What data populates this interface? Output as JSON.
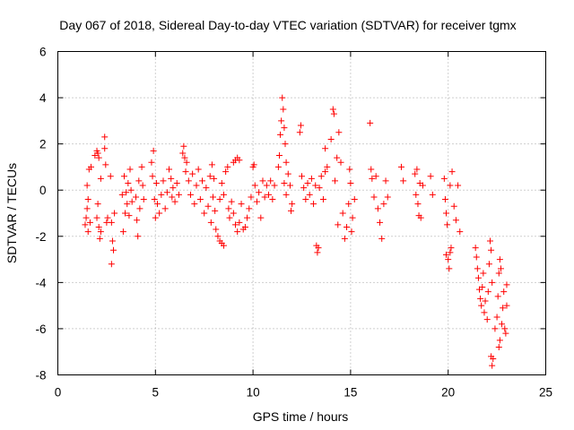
{
  "chart_data": {
    "type": "scatter",
    "title": "Day 067 of 2018, Sidereal Day-to-day VTEC variation (SDTVAR) for receiver tgmx",
    "xlabel": "GPS time / hours",
    "ylabel": "SDTVAR / TECUs",
    "xlim": [
      0,
      25
    ],
    "ylim": [
      -8,
      6
    ],
    "xticks": [
      0,
      5,
      10,
      15,
      20,
      25
    ],
    "yticks": [
      -8,
      -6,
      -4,
      -2,
      0,
      2,
      4,
      6
    ],
    "xtick_labels": [
      "0",
      "5",
      "10",
      "15",
      "20",
      "25"
    ],
    "ytick_labels": [
      "-8",
      "-6",
      "-4",
      "-2",
      "0",
      "2",
      "4",
      "6"
    ],
    "grid": true,
    "marker": "+",
    "color": "#ff0000",
    "series": [
      {
        "name": "SDTVAR",
        "points": [
          [
            1.4,
            -1.5
          ],
          [
            1.45,
            -1.2
          ],
          [
            1.5,
            -0.8
          ],
          [
            1.55,
            -0.4
          ],
          [
            1.5,
            0.2
          ],
          [
            1.6,
            0.9
          ],
          [
            1.7,
            1.0
          ],
          [
            1.55,
            -1.8
          ],
          [
            1.65,
            -1.4
          ],
          [
            1.9,
            1.5
          ],
          [
            2.0,
            1.7
          ],
          [
            2.05,
            1.6
          ],
          [
            2.1,
            1.4
          ],
          [
            2.0,
            -1.2
          ],
          [
            2.1,
            -1.6
          ],
          [
            2.15,
            -2.1
          ],
          [
            2.2,
            -1.8
          ],
          [
            2.05,
            -0.6
          ],
          [
            2.2,
            0.5
          ],
          [
            2.4,
            2.3
          ],
          [
            2.4,
            1.8
          ],
          [
            2.45,
            1.1
          ],
          [
            2.5,
            -1.4
          ],
          [
            2.55,
            -1.2
          ],
          [
            2.7,
            0.6
          ],
          [
            2.75,
            -1.4
          ],
          [
            2.8,
            -2.2
          ],
          [
            2.75,
            -3.2
          ],
          [
            2.85,
            -2.6
          ],
          [
            2.9,
            -1.0
          ],
          [
            3.3,
            -0.2
          ],
          [
            3.35,
            -1.8
          ],
          [
            3.4,
            0.6
          ],
          [
            3.45,
            -1.0
          ],
          [
            3.5,
            -0.1
          ],
          [
            3.55,
            -0.6
          ],
          [
            3.6,
            0.3
          ],
          [
            3.65,
            -1.1
          ],
          [
            3.7,
            0.9
          ],
          [
            3.75,
            0.0
          ],
          [
            3.8,
            -0.5
          ],
          [
            4.0,
            -0.3
          ],
          [
            4.05,
            -1.3
          ],
          [
            4.1,
            -2.0
          ],
          [
            4.15,
            0.4
          ],
          [
            4.2,
            -0.8
          ],
          [
            4.3,
            1.0
          ],
          [
            4.35,
            0.2
          ],
          [
            4.4,
            -0.4
          ],
          [
            4.8,
            1.2
          ],
          [
            4.85,
            0.6
          ],
          [
            4.9,
            1.7
          ],
          [
            4.95,
            -0.4
          ],
          [
            5.0,
            -1.2
          ],
          [
            5.05,
            0.3
          ],
          [
            5.1,
            -0.6
          ],
          [
            5.2,
            -1.0
          ],
          [
            5.3,
            -0.2
          ],
          [
            5.4,
            0.4
          ],
          [
            5.5,
            -0.8
          ],
          [
            5.6,
            -0.1
          ],
          [
            5.7,
            0.9
          ],
          [
            5.8,
            0.5
          ],
          [
            5.85,
            -0.3
          ],
          [
            5.9,
            0.1
          ],
          [
            6.0,
            -0.5
          ],
          [
            6.1,
            0.3
          ],
          [
            6.2,
            -0.2
          ],
          [
            6.4,
            1.6
          ],
          [
            6.45,
            1.9
          ],
          [
            6.5,
            1.4
          ],
          [
            6.55,
            0.8
          ],
          [
            6.6,
            1.2
          ],
          [
            6.7,
            0.4
          ],
          [
            6.8,
            -0.2
          ],
          [
            6.9,
            0.7
          ],
          [
            7.0,
            -0.6
          ],
          [
            7.1,
            0.2
          ],
          [
            7.2,
            0.9
          ],
          [
            7.3,
            -0.4
          ],
          [
            7.4,
            0.4
          ],
          [
            7.5,
            -1.0
          ],
          [
            7.6,
            0.1
          ],
          [
            7.7,
            -0.7
          ],
          [
            7.8,
            0.6
          ],
          [
            7.9,
            1.1
          ],
          [
            7.85,
            -1.4
          ],
          [
            7.95,
            -0.3
          ],
          [
            8.0,
            0.5
          ],
          [
            8.05,
            -0.9
          ],
          [
            8.1,
            -1.7
          ],
          [
            8.2,
            -2.0
          ],
          [
            8.3,
            -2.2
          ],
          [
            8.4,
            -2.3
          ],
          [
            8.5,
            -2.4
          ],
          [
            8.3,
            -0.4
          ],
          [
            8.4,
            0.3
          ],
          [
            8.5,
            -0.2
          ],
          [
            8.6,
            0.8
          ],
          [
            8.7,
            1.0
          ],
          [
            8.75,
            -0.8
          ],
          [
            8.8,
            -1.2
          ],
          [
            8.9,
            -0.5
          ],
          [
            9.0,
            1.2
          ],
          [
            9.1,
            1.3
          ],
          [
            9.2,
            1.4
          ],
          [
            9.3,
            1.3
          ],
          [
            9.0,
            -1.0
          ],
          [
            9.1,
            -1.5
          ],
          [
            9.2,
            -1.8
          ],
          [
            9.3,
            -1.4
          ],
          [
            9.4,
            -0.6
          ],
          [
            9.5,
            -1.7
          ],
          [
            9.6,
            -1.6
          ],
          [
            9.7,
            -1.2
          ],
          [
            9.8,
            -0.8
          ],
          [
            9.9,
            -0.3
          ],
          [
            10.0,
            1.0
          ],
          [
            10.05,
            1.1
          ],
          [
            10.1,
            0.2
          ],
          [
            10.2,
            -0.5
          ],
          [
            10.3,
            -0.1
          ],
          [
            10.4,
            -1.2
          ],
          [
            10.5,
            0.4
          ],
          [
            10.6,
            -0.3
          ],
          [
            10.7,
            0.2
          ],
          [
            10.8,
            -0.2
          ],
          [
            10.9,
            0.4
          ],
          [
            11.0,
            -0.4
          ],
          [
            11.1,
            0.2
          ],
          [
            11.3,
            1.0
          ],
          [
            11.35,
            1.5
          ],
          [
            11.4,
            2.4
          ],
          [
            11.45,
            3.0
          ],
          [
            11.5,
            4.0
          ],
          [
            11.55,
            3.5
          ],
          [
            11.6,
            2.7
          ],
          [
            11.65,
            2.0
          ],
          [
            11.7,
            1.2
          ],
          [
            11.6,
            0.3
          ],
          [
            11.7,
            -0.2
          ],
          [
            11.8,
            0.7
          ],
          [
            11.9,
            0.2
          ],
          [
            12.0,
            -0.6
          ],
          [
            11.95,
            -0.9
          ],
          [
            12.4,
            2.5
          ],
          [
            12.45,
            2.8
          ],
          [
            12.5,
            0.6
          ],
          [
            12.6,
            0.1
          ],
          [
            12.7,
            -0.4
          ],
          [
            12.8,
            0.3
          ],
          [
            12.9,
            -0.2
          ],
          [
            13.0,
            0.5
          ],
          [
            13.1,
            -0.6
          ],
          [
            13.2,
            0.2
          ],
          [
            13.25,
            -2.4
          ],
          [
            13.3,
            -2.7
          ],
          [
            13.35,
            -2.5
          ],
          [
            13.4,
            0.1
          ],
          [
            13.5,
            0.6
          ],
          [
            13.6,
            -0.4
          ],
          [
            13.7,
            0.8
          ],
          [
            13.8,
            1.0
          ],
          [
            13.7,
            1.8
          ],
          [
            14.0,
            2.2
          ],
          [
            14.1,
            3.5
          ],
          [
            14.15,
            3.3
          ],
          [
            14.2,
            0.4
          ],
          [
            14.3,
            1.4
          ],
          [
            14.35,
            -1.5
          ],
          [
            14.4,
            2.5
          ],
          [
            14.5,
            1.2
          ],
          [
            14.6,
            -1.0
          ],
          [
            14.7,
            -2.1
          ],
          [
            14.8,
            -1.6
          ],
          [
            14.9,
            -0.6
          ],
          [
            15.0,
            0.3
          ],
          [
            15.05,
            -1.8
          ],
          [
            15.1,
            -1.2
          ],
          [
            14.95,
            0.9
          ],
          [
            15.2,
            -0.4
          ],
          [
            16.0,
            2.9
          ],
          [
            16.05,
            0.9
          ],
          [
            16.1,
            0.5
          ],
          [
            16.2,
            -0.3
          ],
          [
            16.3,
            0.6
          ],
          [
            16.4,
            -0.8
          ],
          [
            16.5,
            -1.4
          ],
          [
            16.6,
            -2.1
          ],
          [
            16.7,
            -0.6
          ],
          [
            16.8,
            0.4
          ],
          [
            16.9,
            -0.3
          ],
          [
            17.6,
            1.0
          ],
          [
            17.7,
            0.4
          ],
          [
            18.3,
            0.7
          ],
          [
            18.35,
            -0.2
          ],
          [
            18.4,
            0.9
          ],
          [
            18.45,
            -0.6
          ],
          [
            18.5,
            -1.1
          ],
          [
            18.55,
            0.3
          ],
          [
            18.6,
            -1.2
          ],
          [
            18.7,
            0.2
          ],
          [
            19.1,
            0.6
          ],
          [
            19.2,
            -0.2
          ],
          [
            19.8,
            0.5
          ],
          [
            19.85,
            -0.4
          ],
          [
            19.9,
            -1.0
          ],
          [
            19.95,
            -1.5
          ],
          [
            19.9,
            -2.8
          ],
          [
            20.0,
            -3.0
          ],
          [
            20.05,
            -3.4
          ],
          [
            20.1,
            -2.7
          ],
          [
            20.15,
            -2.5
          ],
          [
            20.2,
            0.8
          ],
          [
            20.1,
            0.2
          ],
          [
            20.3,
            -0.7
          ],
          [
            20.4,
            -1.3
          ],
          [
            20.5,
            0.2
          ],
          [
            20.6,
            -1.8
          ],
          [
            21.4,
            -2.5
          ],
          [
            21.45,
            -2.9
          ],
          [
            21.5,
            -3.4
          ],
          [
            21.55,
            -3.8
          ],
          [
            21.6,
            -4.3
          ],
          [
            21.65,
            -4.7
          ],
          [
            21.7,
            -5.0
          ],
          [
            21.75,
            -4.2
          ],
          [
            21.8,
            -3.6
          ],
          [
            21.85,
            -5.3
          ],
          [
            21.9,
            -4.8
          ],
          [
            22.0,
            -5.6
          ],
          [
            22.05,
            -4.4
          ],
          [
            22.1,
            -3.2
          ],
          [
            22.15,
            -2.2
          ],
          [
            22.2,
            -2.6
          ],
          [
            22.25,
            -4.0
          ],
          [
            22.2,
            -7.2
          ],
          [
            22.25,
            -7.6
          ],
          [
            22.3,
            -7.3
          ],
          [
            22.4,
            -6.0
          ],
          [
            22.5,
            -5.5
          ],
          [
            22.55,
            -4.6
          ],
          [
            22.6,
            -3.6
          ],
          [
            22.65,
            -3.0
          ],
          [
            22.7,
            -3.4
          ],
          [
            22.6,
            -6.8
          ],
          [
            22.65,
            -6.5
          ],
          [
            22.75,
            -5.8
          ],
          [
            22.8,
            -5.1
          ],
          [
            22.85,
            -4.4
          ],
          [
            22.9,
            -6.0
          ],
          [
            22.95,
            -6.2
          ],
          [
            23.0,
            -4.1
          ],
          [
            23.0,
            -5.0
          ]
        ]
      }
    ]
  }
}
